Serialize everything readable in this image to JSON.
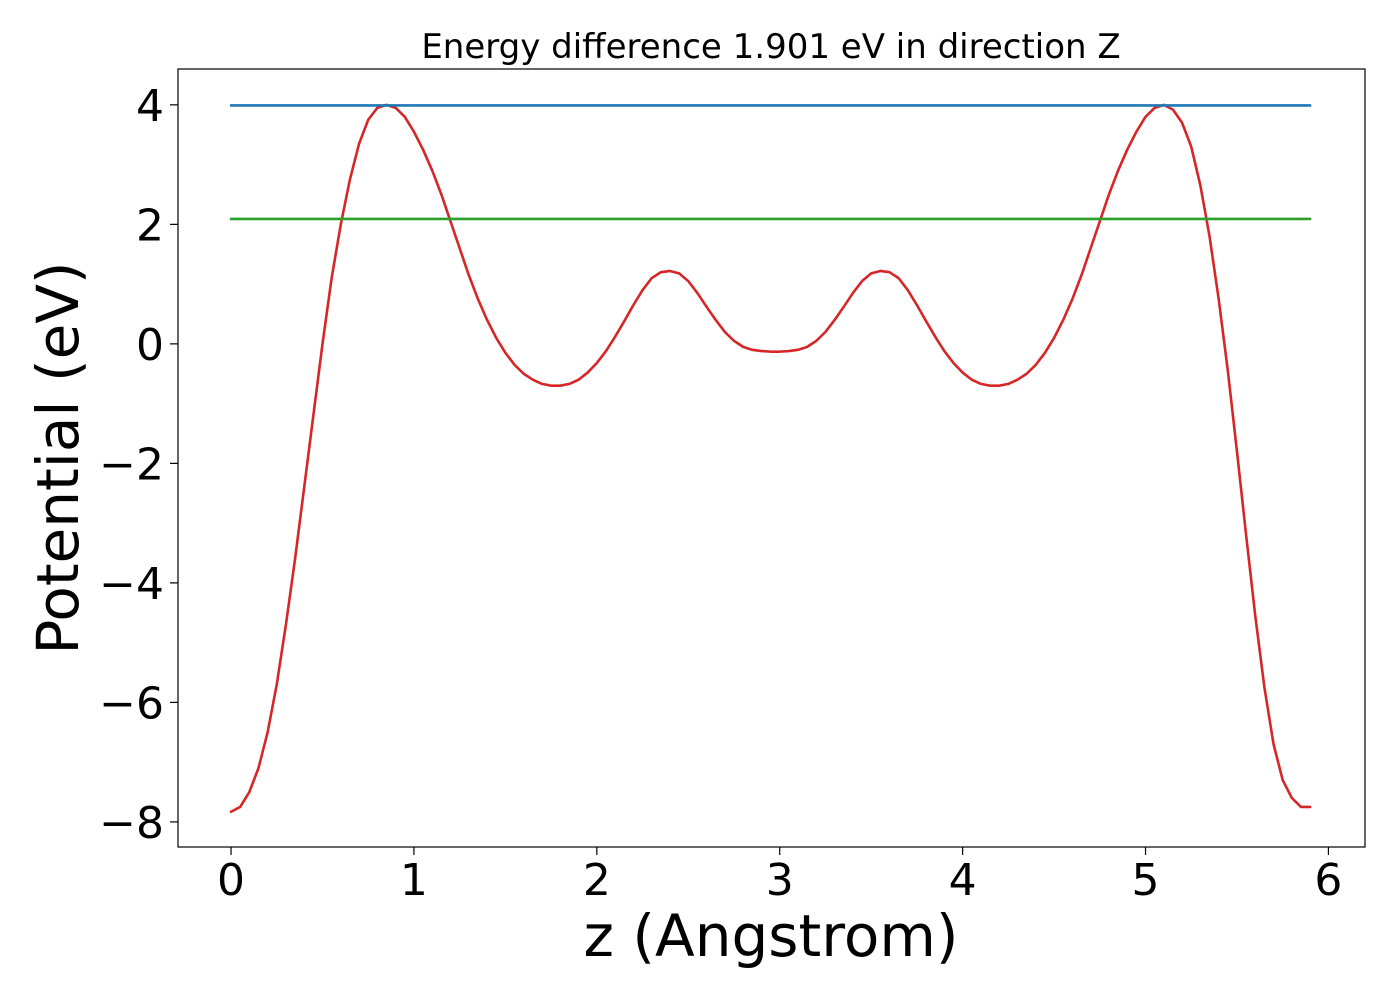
{
  "chart_data": {
    "type": "line",
    "title": "Energy difference 1.901 eV in direction Z",
    "xlabel": "z (Angstrom)",
    "ylabel": "Potential (eV)",
    "xlim": [
      -0.29,
      6.2
    ],
    "ylim": [
      -8.42,
      4.6
    ],
    "xticks": [
      0,
      1,
      2,
      3,
      4,
      5,
      6
    ],
    "xtick_labels": [
      "0",
      "1",
      "2",
      "3",
      "4",
      "5",
      "6"
    ],
    "yticks": [
      -8,
      -6,
      -4,
      -2,
      0,
      2,
      4
    ],
    "ytick_labels": [
      "−8",
      "−6",
      "−4",
      "−2",
      "0",
      "2",
      "4"
    ],
    "grid": false,
    "series": [
      {
        "color": "#d62728",
        "points": [
          [
            0.0,
            -7.83
          ],
          [
            0.05,
            -7.75
          ],
          [
            0.1,
            -7.5
          ],
          [
            0.15,
            -7.1
          ],
          [
            0.2,
            -6.5
          ],
          [
            0.25,
            -5.7
          ],
          [
            0.3,
            -4.7
          ],
          [
            0.35,
            -3.6
          ],
          [
            0.4,
            -2.4
          ],
          [
            0.45,
            -1.2
          ],
          [
            0.5,
            0.0
          ],
          [
            0.55,
            1.1
          ],
          [
            0.6,
            2.0
          ],
          [
            0.65,
            2.75
          ],
          [
            0.7,
            3.35
          ],
          [
            0.75,
            3.75
          ],
          [
            0.8,
            3.95
          ],
          [
            0.85,
            4.0
          ],
          [
            0.9,
            3.95
          ],
          [
            0.95,
            3.8
          ],
          [
            1.0,
            3.55
          ],
          [
            1.05,
            3.25
          ],
          [
            1.1,
            2.9
          ],
          [
            1.15,
            2.5
          ],
          [
            1.2,
            2.05
          ],
          [
            1.25,
            1.6
          ],
          [
            1.3,
            1.15
          ],
          [
            1.35,
            0.75
          ],
          [
            1.4,
            0.4
          ],
          [
            1.45,
            0.1
          ],
          [
            1.5,
            -0.15
          ],
          [
            1.55,
            -0.35
          ],
          [
            1.6,
            -0.5
          ],
          [
            1.65,
            -0.6
          ],
          [
            1.7,
            -0.67
          ],
          [
            1.75,
            -0.7
          ],
          [
            1.8,
            -0.7
          ],
          [
            1.85,
            -0.67
          ],
          [
            1.9,
            -0.6
          ],
          [
            1.95,
            -0.48
          ],
          [
            2.0,
            -0.32
          ],
          [
            2.05,
            -0.12
          ],
          [
            2.1,
            0.12
          ],
          [
            2.15,
            0.38
          ],
          [
            2.2,
            0.65
          ],
          [
            2.25,
            0.9
          ],
          [
            2.3,
            1.1
          ],
          [
            2.35,
            1.2
          ],
          [
            2.4,
            1.22
          ],
          [
            2.45,
            1.18
          ],
          [
            2.5,
            1.05
          ],
          [
            2.55,
            0.85
          ],
          [
            2.6,
            0.62
          ],
          [
            2.65,
            0.4
          ],
          [
            2.7,
            0.2
          ],
          [
            2.75,
            0.05
          ],
          [
            2.8,
            -0.05
          ],
          [
            2.85,
            -0.1
          ],
          [
            2.9,
            -0.12
          ],
          [
            2.95,
            -0.13
          ],
          [
            3.0,
            -0.13
          ],
          [
            3.05,
            -0.12
          ],
          [
            3.1,
            -0.1
          ],
          [
            3.15,
            -0.05
          ],
          [
            3.2,
            0.05
          ],
          [
            3.25,
            0.2
          ],
          [
            3.3,
            0.4
          ],
          [
            3.35,
            0.62
          ],
          [
            3.4,
            0.85
          ],
          [
            3.45,
            1.05
          ],
          [
            3.5,
            1.18
          ],
          [
            3.55,
            1.22
          ],
          [
            3.6,
            1.2
          ],
          [
            3.65,
            1.1
          ],
          [
            3.7,
            0.9
          ],
          [
            3.75,
            0.65
          ],
          [
            3.8,
            0.38
          ],
          [
            3.85,
            0.12
          ],
          [
            3.9,
            -0.12
          ],
          [
            3.95,
            -0.32
          ],
          [
            4.0,
            -0.48
          ],
          [
            4.05,
            -0.6
          ],
          [
            4.1,
            -0.67
          ],
          [
            4.15,
            -0.7
          ],
          [
            4.2,
            -0.7
          ],
          [
            4.25,
            -0.67
          ],
          [
            4.3,
            -0.6
          ],
          [
            4.35,
            -0.5
          ],
          [
            4.4,
            -0.35
          ],
          [
            4.45,
            -0.15
          ],
          [
            4.5,
            0.1
          ],
          [
            4.55,
            0.4
          ],
          [
            4.6,
            0.75
          ],
          [
            4.65,
            1.15
          ],
          [
            4.7,
            1.6
          ],
          [
            4.75,
            2.05
          ],
          [
            4.8,
            2.5
          ],
          [
            4.85,
            2.9
          ],
          [
            4.9,
            3.25
          ],
          [
            4.95,
            3.55
          ],
          [
            5.0,
            3.8
          ],
          [
            5.05,
            3.95
          ],
          [
            5.1,
            4.0
          ],
          [
            5.15,
            3.92
          ],
          [
            5.2,
            3.7
          ],
          [
            5.25,
            3.3
          ],
          [
            5.3,
            2.65
          ],
          [
            5.35,
            1.8
          ],
          [
            5.4,
            0.75
          ],
          [
            5.45,
            -0.45
          ],
          [
            5.5,
            -1.8
          ],
          [
            5.55,
            -3.2
          ],
          [
            5.6,
            -4.55
          ],
          [
            5.65,
            -5.75
          ],
          [
            5.7,
            -6.7
          ],
          [
            5.75,
            -7.3
          ],
          [
            5.8,
            -7.6
          ],
          [
            5.85,
            -7.75
          ],
          [
            5.9,
            -7.75
          ]
        ]
      },
      {
        "color": "#1f77b4",
        "points": [
          [
            0.0,
            3.99
          ],
          [
            5.9,
            3.99
          ]
        ]
      },
      {
        "color": "#2ca02c",
        "points": [
          [
            0.0,
            2.09
          ],
          [
            5.9,
            2.09
          ]
        ]
      }
    ]
  }
}
